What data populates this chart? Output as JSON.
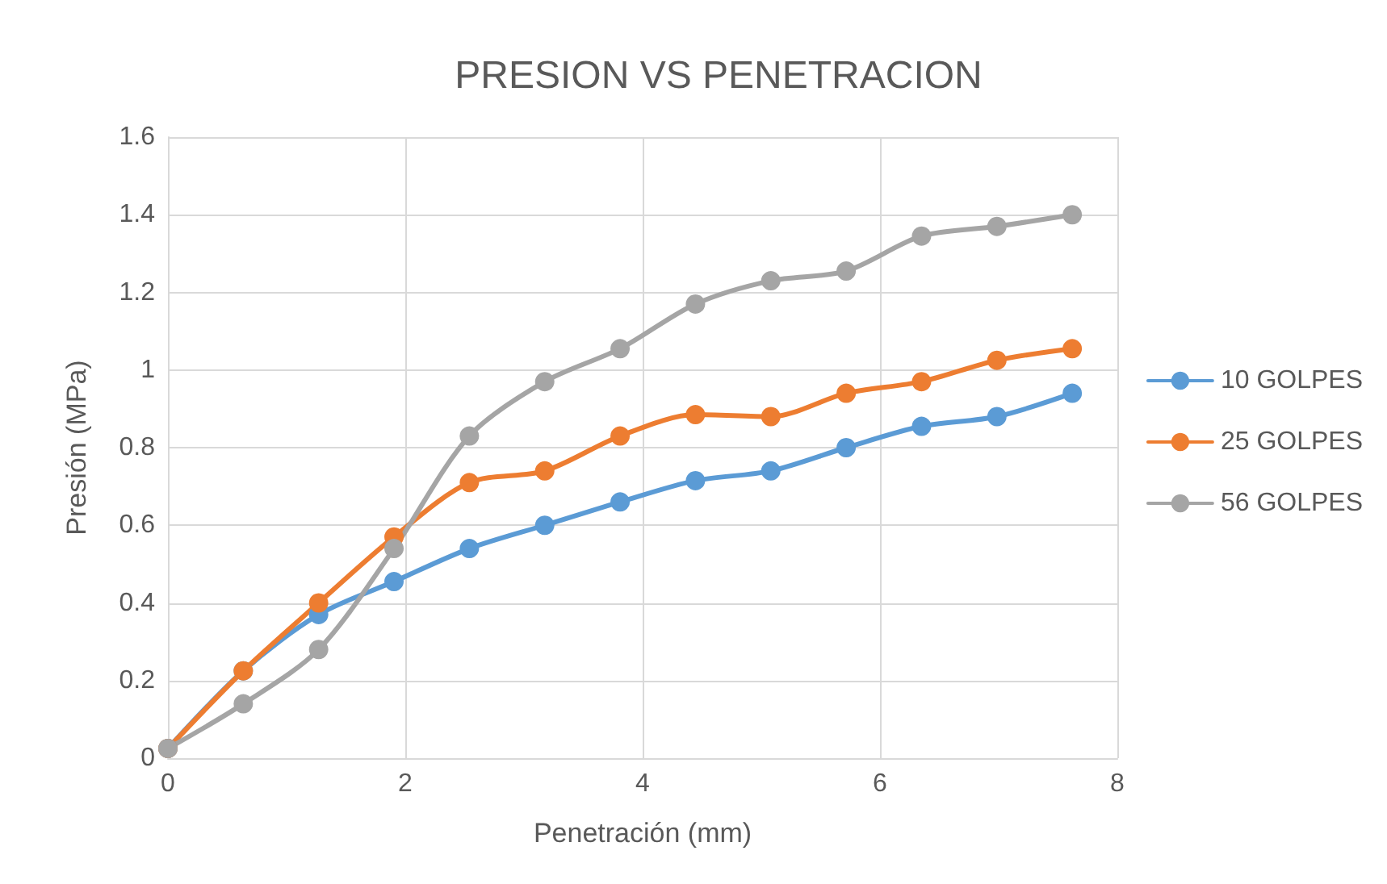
{
  "chart_data": {
    "type": "line",
    "title": "PRESION VS PENETRACION",
    "xlabel": "Penetración (mm)",
    "ylabel": "Presión (MPa)",
    "x": [
      0,
      0.635,
      1.27,
      1.905,
      2.54,
      3.175,
      3.81,
      4.445,
      5.08,
      5.715,
      6.35,
      6.985,
      7.62
    ],
    "series": [
      {
        "name": "10 GOLPES",
        "color": "#5b9bd5",
        "values": [
          0.025,
          0.225,
          0.37,
          0.455,
          0.54,
          0.6,
          0.66,
          0.715,
          0.74,
          0.8,
          0.855,
          0.88,
          0.94
        ]
      },
      {
        "name": "25 GOLPES",
        "color": "#ed7d31",
        "values": [
          0.025,
          0.225,
          0.4,
          0.57,
          0.71,
          0.74,
          0.83,
          0.885,
          0.88,
          0.94,
          0.97,
          1.025,
          1.055
        ]
      },
      {
        "name": "56 GOLPES",
        "color": "#a5a5a5",
        "values": [
          0.025,
          0.14,
          0.28,
          0.54,
          0.83,
          0.97,
          1.055,
          1.17,
          1.23,
          1.255,
          1.345,
          1.37,
          1.4
        ]
      }
    ],
    "xlim": [
      0,
      8
    ],
    "xticks": [
      0,
      2,
      4,
      6,
      8
    ],
    "ylim": [
      0,
      1.6
    ],
    "yticks": [
      0,
      0.2,
      0.4,
      0.6,
      0.8,
      1,
      1.2,
      1.4,
      1.6
    ],
    "grid": true,
    "legend": "right",
    "marker": "circle",
    "line_style": "solid"
  }
}
